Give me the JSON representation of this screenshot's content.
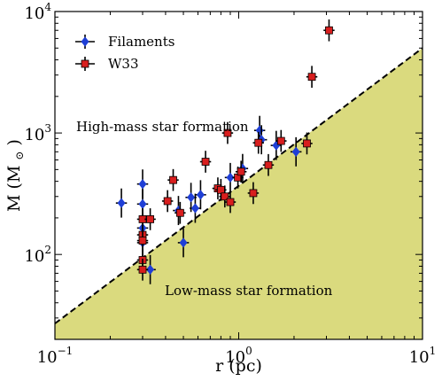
{
  "chart_data": {
    "type": "scatter",
    "xscale": "log",
    "yscale": "log",
    "xlim": [
      0.1,
      10
    ],
    "ylim": [
      20,
      10000
    ],
    "x_ticks": [
      {
        "value": 0.1,
        "base": "10",
        "exp": "−1"
      },
      {
        "value": 1,
        "base": "10",
        "exp": "0"
      },
      {
        "value": 10,
        "base": "10",
        "exp": "1"
      }
    ],
    "y_ticks": [
      {
        "value": 100,
        "base": "10",
        "exp": "2"
      },
      {
        "value": 1000,
        "base": "10",
        "exp": "3"
      },
      {
        "value": 10000,
        "base": "10",
        "exp": "4"
      }
    ],
    "xlabel": {
      "main": "r",
      "unit": "(pc)"
    },
    "ylabel": {
      "main": "M",
      "unit_open": "(M",
      "unit_sub": "⊙",
      "unit_close": ")"
    },
    "threshold_line": {
      "style": "dashed",
      "x": [
        0.1,
        10
      ],
      "y": [
        27,
        5000
      ],
      "fill_below": true
    },
    "annotations": {
      "high_mass": "High-mass star formation",
      "low_mass": "Low-mass star formation"
    },
    "legend_position": "top-left",
    "series": [
      {
        "name": "Filaments",
        "color": "#1f3fd6",
        "marker": "diamond",
        "x_err": 0.03,
        "y_err": 0.12,
        "points": [
          [
            0.23,
            265
          ],
          [
            0.3,
            380
          ],
          [
            0.3,
            260
          ],
          [
            0.3,
            165
          ],
          [
            0.3,
            125
          ],
          [
            0.33,
            75
          ],
          [
            0.5,
            125
          ],
          [
            0.55,
            295
          ],
          [
            0.58,
            240
          ],
          [
            0.62,
            310
          ],
          [
            0.9,
            430
          ],
          [
            1.05,
            510
          ],
          [
            1.3,
            1050
          ],
          [
            1.33,
            880
          ],
          [
            1.6,
            790
          ],
          [
            2.05,
            700
          ],
          [
            0.47,
            230
          ]
        ]
      },
      {
        "name": "W33",
        "color": "#d81e1e",
        "marker": "square",
        "x_err": 0.03,
        "y_err": 0.09,
        "points": [
          [
            0.3,
            195
          ],
          [
            0.3,
            145
          ],
          [
            0.3,
            130
          ],
          [
            0.3,
            90
          ],
          [
            0.3,
            75
          ],
          [
            0.33,
            195
          ],
          [
            0.41,
            275
          ],
          [
            0.44,
            410
          ],
          [
            0.48,
            220
          ],
          [
            0.66,
            580
          ],
          [
            0.77,
            350
          ],
          [
            0.8,
            340
          ],
          [
            0.84,
            300
          ],
          [
            0.87,
            1000
          ],
          [
            0.9,
            270
          ],
          [
            0.99,
            430
          ],
          [
            1.03,
            480
          ],
          [
            1.2,
            320
          ],
          [
            1.28,
            830
          ],
          [
            1.45,
            545
          ],
          [
            1.7,
            860
          ],
          [
            2.35,
            820
          ],
          [
            2.5,
            2900
          ],
          [
            3.1,
            7000
          ]
        ]
      }
    ]
  }
}
